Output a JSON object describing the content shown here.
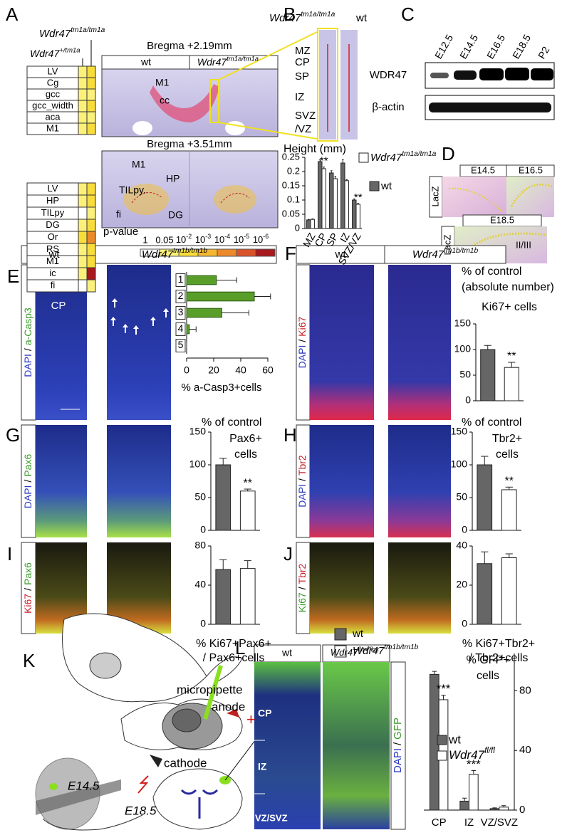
{
  "panels": {
    "A": {
      "letter": "A",
      "het": {
        "base": "Wdr47",
        "sup": "+/tm1a"
      },
      "hom": {
        "base": "Wdr47",
        "sup": "tm1a/tm1a"
      },
      "section1": {
        "title": "Bregma +2.19mm",
        "wt": "wt",
        "mutant": {
          "base": "Wdr47",
          "sup": "tm1a/tm1a"
        },
        "labels": [
          "M1",
          "cc"
        ]
      },
      "section2": {
        "title": "Bregma +3.51mm",
        "labels": [
          "M1",
          "HP",
          "TILpy.",
          "fi",
          "DG"
        ]
      },
      "table1": {
        "rows": [
          "LV",
          "Cg",
          "gcc",
          "gcc_width",
          "aca",
          "M1"
        ],
        "levels": [
          [
            1,
            2
          ],
          [
            1,
            2
          ],
          [
            1,
            1
          ],
          [
            1,
            2
          ],
          [
            1,
            1
          ],
          [
            1,
            2
          ]
        ]
      },
      "table2": {
        "rows": [
          "LV",
          "HP",
          "TILpy",
          "DG",
          "Or",
          "RS",
          "M1",
          "ic",
          "fi"
        ],
        "levels": [
          [
            1,
            2
          ],
          [
            1,
            2
          ],
          [
            0,
            1
          ],
          [
            1,
            2
          ],
          [
            2,
            4
          ],
          [
            1,
            2
          ],
          [
            1,
            2
          ],
          [
            1,
            6
          ],
          [
            0,
            1
          ]
        ]
      },
      "scale": {
        "title": "p-value",
        "colors": [
          "#ffffff",
          "#fbf07a",
          "#f8dc3c",
          "#f4b730",
          "#ec8a2a",
          "#d9532a",
          "#a8181c"
        ],
        "labels": [
          "1",
          "0.05",
          {
            "base": "10",
            "sup": "-2"
          },
          {
            "base": "10",
            "sup": "-3"
          },
          {
            "base": "10",
            "sup": "-4"
          },
          {
            "base": "10",
            "sup": "-5"
          },
          {
            "base": "10",
            "sup": "-6"
          }
        ]
      }
    },
    "B": {
      "letter": "B",
      "mutant": {
        "base": "Wdr47",
        "sup": "tm1a/tm1a"
      },
      "wt": "wt",
      "layers": [
        "MZ",
        "CP",
        "SP",
        "IZ",
        "SVZ",
        "/VZ"
      ]
    },
    "C": {
      "letter": "C",
      "lanes": [
        "E12.5",
        "E14.5",
        "E16.5",
        "E18.5",
        "P2"
      ],
      "rows": [
        "WDR47",
        "β-actin"
      ]
    },
    "D": {
      "letter": "D",
      "stages": [
        "E14.5",
        "E16.5",
        "E18.5"
      ],
      "stain": "LacZ",
      "layer": "II/III"
    },
    "E": {
      "letter": "E",
      "wt": "wt",
      "mutant": {
        "base": "Wdr47",
        "sup": "tm1b/tm1b"
      },
      "stain": [
        "DAPI",
        "/",
        "a-Casp3"
      ],
      "stain_colors": [
        "#2a3ac0",
        "#000000",
        "#3a9a2a"
      ],
      "region": "CP"
    },
    "F": {
      "letter": "F",
      "wt": "wt",
      "mutant": {
        "base": "Wdr47",
        "sup": "tm1b/tm1b"
      },
      "stain": [
        "DAPI",
        "/",
        "Ki67"
      ],
      "stain_colors": [
        "#2a3ac0",
        "#000000",
        "#c8202a"
      ]
    },
    "G": {
      "letter": "G",
      "stain": [
        "DAPI",
        "/",
        "Pax6"
      ],
      "stain_colors": [
        "#2a3ac0",
        "#000000",
        "#3a9a2a"
      ]
    },
    "H": {
      "letter": "H",
      "stain": [
        "DAPI",
        "/",
        "Tbr2"
      ],
      "stain_colors": [
        "#2a3ac0",
        "#000000",
        "#c8202a"
      ]
    },
    "I": {
      "letter": "I",
      "stain": [
        "Ki67",
        "/",
        "Pax6"
      ],
      "stain_colors": [
        "#c8202a",
        "#000000",
        "#3a9a2a"
      ]
    },
    "J": {
      "letter": "J",
      "stain": [
        "Ki67",
        "/",
        "Tbr2"
      ],
      "stain_colors": [
        "#3a9a2a",
        "#000000",
        "#c8202a"
      ]
    },
    "legend": {
      "items": [
        {
          "name": "wt",
          "color": "#666666"
        },
        {
          "name": {
            "base": "Wdr47",
            "sup": "tm1b/tm1b"
          },
          "color": "#ffffff"
        }
      ]
    },
    "K": {
      "letter": "K",
      "pipette": "micropipette",
      "anode": "anode",
      "plus": "+",
      "cathode": "cathode",
      "inject": "E14.5",
      "harvest": "E18.5"
    },
    "L": {
      "letter": "L",
      "wt": "wt",
      "mutant": {
        "base": "Wdr47",
        "sup": "flox/flox"
      },
      "regions": [
        "CP",
        "IZ",
        "VZ/SVZ"
      ],
      "stain": [
        "DAPI",
        "/",
        "GFP"
      ],
      "stain_colors": [
        "#2a3ac0",
        "#000000",
        "#3a9a2a"
      ]
    }
  },
  "chart_data": [
    {
      "type": "bar",
      "title": "Height (mm)",
      "categories": [
        "MZ",
        "CP",
        "SP",
        "IZ",
        "SVZ/VZ"
      ],
      "series": [
        {
          "name": "wt",
          "color": "#666666",
          "values": [
            0.03,
            0.235,
            0.195,
            0.23,
            0.1
          ],
          "errors": [
            0.002,
            0.006,
            0.008,
            0.012,
            0.004
          ]
        },
        {
          "name": {
            "base": "Wdr47",
            "sup": "tm1a/tm1a"
          },
          "color": "#ffffff",
          "values": [
            0.032,
            0.21,
            0.175,
            0.168,
            0.085
          ],
          "errors": [
            0.002,
            0.006,
            0.008,
            0.004,
            0.003
          ],
          "stars": [
            null,
            "**",
            null,
            null,
            "**"
          ]
        }
      ],
      "ylim": [
        0,
        0.25
      ],
      "yticks": [
        0,
        0.05,
        0.1,
        0.15,
        0.2,
        0.25
      ]
    },
    {
      "type": "bar",
      "orientation": "horizontal",
      "categories": [
        "1",
        "2",
        "3",
        "4",
        "5"
      ],
      "values": [
        22,
        50,
        26,
        2,
        0
      ],
      "errors": [
        15,
        12,
        20,
        5,
        0
      ],
      "color": "#5a9e2a",
      "xlim": [
        0,
        60
      ],
      "xticks": [
        0,
        20,
        40,
        60
      ],
      "xlabel": "% a-Casp3+cells"
    },
    {
      "type": "bar",
      "title": "% of control",
      "subtitle": "(absolute number)",
      "label_lines": [
        "Ki67+ cells"
      ],
      "values": [
        100,
        65
      ],
      "errors": [
        8,
        10
      ],
      "stars": [
        null,
        "**"
      ],
      "colors": [
        "#666666",
        "#ffffff"
      ],
      "ylim": [
        0,
        150
      ],
      "yticks": [
        0,
        50,
        100,
        150
      ]
    },
    {
      "type": "bar",
      "title": "% of control",
      "label_lines": [
        "Pax6+",
        "cells"
      ],
      "values": [
        100,
        60
      ],
      "errors": [
        10,
        3
      ],
      "stars": [
        null,
        "**"
      ],
      "colors": [
        "#666666",
        "#ffffff"
      ],
      "ylim": [
        0,
        150
      ],
      "yticks": [
        0,
        50,
        100,
        150
      ]
    },
    {
      "type": "bar",
      "title": "% of control",
      "label_lines": [
        "Tbr2+",
        "cells"
      ],
      "values": [
        100,
        62
      ],
      "errors": [
        13,
        4
      ],
      "stars": [
        null,
        "**"
      ],
      "colors": [
        "#666666",
        "#ffffff"
      ],
      "ylim": [
        0,
        150
      ],
      "yticks": [
        0,
        50,
        100,
        150
      ]
    },
    {
      "type": "bar",
      "xlabel_lines": [
        "% Ki67+Pax6+",
        "/ Pax6+cells"
      ],
      "values": [
        56,
        57
      ],
      "errors": [
        10,
        8
      ],
      "colors": [
        "#666666",
        "#ffffff"
      ],
      "ylim": [
        0,
        80
      ],
      "yticks": [
        0,
        40,
        80
      ]
    },
    {
      "type": "bar",
      "xlabel_lines": [
        "% Ki67+Tbr2+",
        "/ Tbr2+cells"
      ],
      "values": [
        31,
        34
      ],
      "errors": [
        6,
        2
      ],
      "colors": [
        "#666666",
        "#ffffff"
      ],
      "ylim": [
        0,
        40
      ],
      "yticks": [
        0,
        20,
        40
      ]
    },
    {
      "type": "bar",
      "label_lines": [
        "% GFP+",
        "cells"
      ],
      "categories": [
        "CP",
        "IZ",
        "VZ/SVZ"
      ],
      "series": [
        {
          "name": "wt",
          "color": "#666666",
          "values": [
            91,
            6,
            1
          ],
          "errors": [
            2,
            2,
            0.5
          ]
        },
        {
          "name": {
            "base": "Wdr47",
            "sup": "fl/fl"
          },
          "color": "#ffffff",
          "values": [
            74,
            24,
            2
          ],
          "errors": [
            3,
            2.5,
            1
          ],
          "stars": [
            "***",
            "***",
            null
          ]
        }
      ],
      "ylim": [
        0,
        105
      ],
      "yticks": [
        0,
        40,
        80
      ],
      "y_axis": "right"
    }
  ]
}
